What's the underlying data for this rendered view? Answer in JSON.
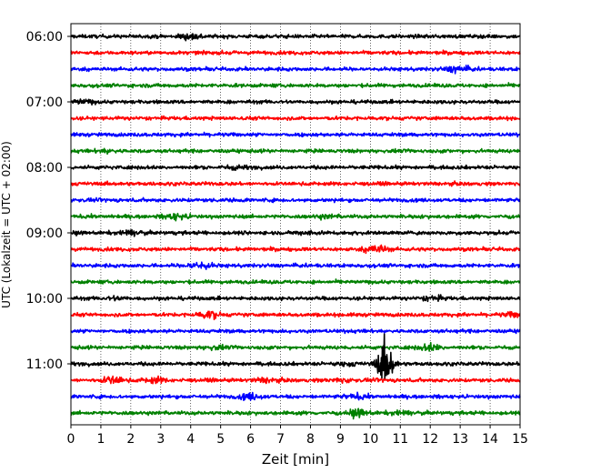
{
  "chart_data": {
    "type": "line",
    "subtype": "helicorder",
    "xlabel": "Zeit  [min]",
    "ylabel": "UTC (Lokalzeit = UTC + 02:00)",
    "xlim": [
      0,
      15
    ],
    "x_ticks": [
      0,
      1,
      2,
      3,
      4,
      5,
      6,
      7,
      8,
      9,
      10,
      11,
      12,
      13,
      14,
      15
    ],
    "y_ticks": [
      "06:00",
      "07:00",
      "08:00",
      "09:00",
      "10:00",
      "11:00"
    ],
    "grid": "vertical dotted at each minute",
    "legend": "none",
    "row_colors": [
      "#000000",
      "#ff0000",
      "#0000ff",
      "#008000"
    ],
    "rows_per_hour": 4,
    "rows": [
      {
        "start": "06:00",
        "color": "#000000",
        "events": [
          {
            "minute": 4.0,
            "amplitude": 0.35
          }
        ]
      },
      {
        "start": "06:15",
        "color": "#ff0000",
        "events": []
      },
      {
        "start": "06:30",
        "color": "#0000ff",
        "events": [
          {
            "minute": 12.9,
            "amplitude": 0.35
          }
        ]
      },
      {
        "start": "06:45",
        "color": "#008000",
        "events": []
      },
      {
        "start": "07:00",
        "color": "#000000",
        "events": [
          {
            "minute": 0.4,
            "amplitude": 0.2
          }
        ]
      },
      {
        "start": "07:15",
        "color": "#ff0000",
        "events": []
      },
      {
        "start": "07:30",
        "color": "#0000ff",
        "events": []
      },
      {
        "start": "07:45",
        "color": "#008000",
        "events": [
          {
            "minute": 1.2,
            "amplitude": 0.15
          }
        ]
      },
      {
        "start": "08:00",
        "color": "#000000",
        "events": [
          {
            "minute": 5.5,
            "amplitude": 0.15
          }
        ]
      },
      {
        "start": "08:15",
        "color": "#ff0000",
        "events": []
      },
      {
        "start": "08:30",
        "color": "#0000ff",
        "events": []
      },
      {
        "start": "08:45",
        "color": "#008000",
        "events": [
          {
            "minute": 3.5,
            "amplitude": 0.3
          },
          {
            "minute": 8.5,
            "amplitude": 0.15
          }
        ]
      },
      {
        "start": "09:00",
        "color": "#000000",
        "events": [
          {
            "minute": 2.0,
            "amplitude": 0.2
          },
          {
            "minute": 8.0,
            "amplitude": 0.15
          }
        ]
      },
      {
        "start": "09:15",
        "color": "#ff0000",
        "events": [
          {
            "minute": 10.2,
            "amplitude": 0.45
          }
        ]
      },
      {
        "start": "09:30",
        "color": "#0000ff",
        "events": [
          {
            "minute": 4.3,
            "amplitude": 0.4
          }
        ]
      },
      {
        "start": "09:45",
        "color": "#008000",
        "events": []
      },
      {
        "start": "10:00",
        "color": "#000000",
        "events": [
          {
            "minute": 1.5,
            "amplitude": 0.15
          },
          {
            "minute": 12.1,
            "amplitude": 0.2
          }
        ]
      },
      {
        "start": "10:15",
        "color": "#ff0000",
        "events": [
          {
            "minute": 4.6,
            "amplitude": 0.35
          },
          {
            "minute": 14.8,
            "amplitude": 0.2
          }
        ]
      },
      {
        "start": "10:30",
        "color": "#0000ff",
        "events": []
      },
      {
        "start": "10:45",
        "color": "#008000",
        "events": [
          {
            "minute": 12.0,
            "amplitude": 0.35
          },
          {
            "minute": 4.8,
            "amplitude": 0.15
          }
        ]
      },
      {
        "start": "11:00",
        "color": "#000000",
        "events": [
          {
            "minute": 10.5,
            "amplitude": 2.5
          },
          {
            "minute": 9.2,
            "amplitude": 0.15
          }
        ]
      },
      {
        "start": "11:15",
        "color": "#ff0000",
        "events": [
          {
            "minute": 1.4,
            "amplitude": 0.35
          },
          {
            "minute": 2.8,
            "amplitude": 0.25
          },
          {
            "minute": 6.5,
            "amplitude": 0.2
          },
          {
            "minute": 9.0,
            "amplitude": 0.15
          }
        ]
      },
      {
        "start": "11:30",
        "color": "#0000ff",
        "events": [
          {
            "minute": 6.0,
            "amplitude": 0.3
          },
          {
            "minute": 9.5,
            "amplitude": 0.2
          }
        ]
      },
      {
        "start": "11:45",
        "color": "#008000",
        "events": [
          {
            "minute": 9.6,
            "amplitude": 0.3
          },
          {
            "minute": 11.0,
            "amplitude": 0.15
          }
        ]
      }
    ]
  }
}
